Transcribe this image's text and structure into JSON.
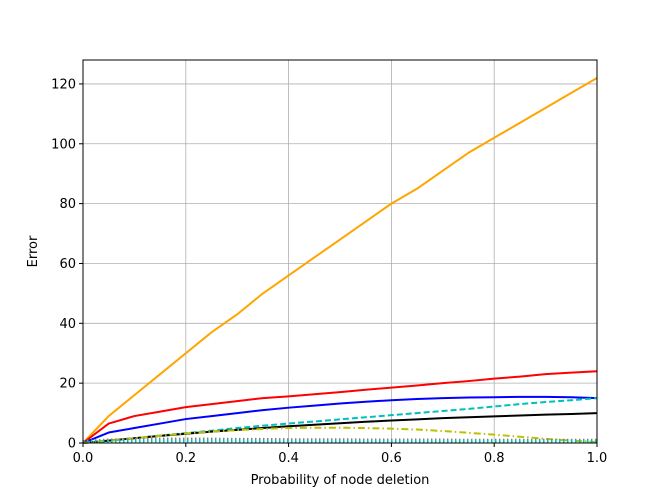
{
  "chart_data": {
    "type": "line",
    "title": "",
    "xlabel": "Probability of node deletion",
    "ylabel": "Error",
    "xlim": [
      0.0,
      1.0
    ],
    "ylim": [
      0,
      128
    ],
    "grid": true,
    "legend": "none",
    "x_ticks": [
      "0.0",
      "0.2",
      "0.4",
      "0.6",
      "0.8",
      "1.0"
    ],
    "y_ticks": [
      "0",
      "20",
      "40",
      "60",
      "80",
      "100",
      "120"
    ],
    "x": [
      0.0,
      0.05,
      0.1,
      0.15,
      0.2,
      0.25,
      0.3,
      0.35,
      0.4,
      0.45,
      0.5,
      0.55,
      0.6,
      0.65,
      0.7,
      0.75,
      0.8,
      0.85,
      0.9,
      0.95,
      1.0
    ],
    "series": [
      {
        "color": "#ffa500",
        "dash": "solid",
        "values": [
          0,
          9,
          16,
          23,
          30,
          37,
          43,
          50,
          56,
          62,
          68,
          74,
          80,
          85,
          91,
          97,
          102,
          107,
          112,
          117,
          122
        ]
      },
      {
        "color": "#ff0000",
        "dash": "solid",
        "values": [
          0,
          6.5,
          9,
          10.5,
          12,
          13,
          14,
          15,
          15.6,
          16.3,
          17,
          17.8,
          18.5,
          19.2,
          20,
          20.7,
          21.5,
          22.2,
          23,
          23.5,
          24
        ]
      },
      {
        "color": "#0000ff",
        "dash": "solid",
        "values": [
          0,
          3.5,
          5,
          6.5,
          8,
          9,
          10,
          11,
          11.8,
          12.5,
          13.2,
          13.8,
          14.3,
          14.7,
          15,
          15.2,
          15.3,
          15.4,
          15.4,
          15.3,
          15
        ]
      },
      {
        "color": "#00bfbf",
        "dash": "dashed",
        "values": [
          0,
          0.8,
          1.6,
          2.5,
          3.3,
          4.1,
          5,
          5.8,
          6.5,
          7.2,
          7.9,
          8.6,
          9.3,
          10,
          10.7,
          11.4,
          12.2,
          13,
          13.7,
          14.3,
          15
        ]
      },
      {
        "color": "#000000",
        "dash": "solid",
        "values": [
          0,
          0.8,
          1.6,
          2.4,
          3.1,
          3.8,
          4.4,
          5,
          5.6,
          6.1,
          6.6,
          7.1,
          7.5,
          7.9,
          8.3,
          8.6,
          8.9,
          9.2,
          9.5,
          9.7,
          10
        ]
      },
      {
        "color": "#bfbf00",
        "dash": "dashdot",
        "values": [
          0,
          0.8,
          1.6,
          2.4,
          3.2,
          3.8,
          4.3,
          4.7,
          5,
          5.1,
          5.1,
          5,
          4.8,
          4.5,
          4,
          3.4,
          2.8,
          2.1,
          1.4,
          0.8,
          0.3
        ]
      },
      {
        "color": "#808080",
        "dash": "dotted",
        "values": [
          0.5,
          1,
          1.2,
          1.3,
          1.3,
          1.3,
          1.2,
          1.2,
          1.1,
          1.1,
          1.1,
          1,
          1,
          1,
          1,
          0.9,
          0.9,
          0.9,
          0.9,
          0.9,
          0.9
        ]
      },
      {
        "color": "#00bfbf",
        "dash": "dotted",
        "values": [
          0.3,
          0.6,
          0.7,
          0.7,
          0.7,
          0.7,
          0.7,
          0.6,
          0.6,
          0.6,
          0.6,
          0.6,
          0.6,
          0.6,
          0.6,
          0.6,
          0.6,
          0.6,
          0.6,
          0.6,
          0.6
        ]
      }
    ]
  }
}
